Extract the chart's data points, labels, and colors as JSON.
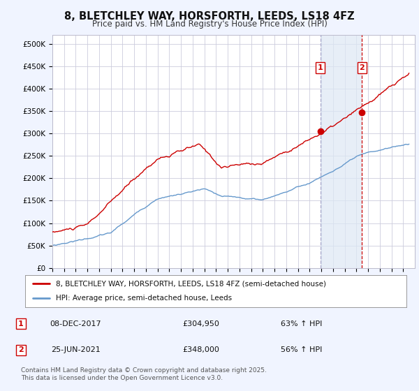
{
  "title": "8, BLETCHLEY WAY, HORSFORTH, LEEDS, LS18 4FZ",
  "subtitle": "Price paid vs. HM Land Registry's House Price Index (HPI)",
  "yticks": [
    0,
    50000,
    100000,
    150000,
    200000,
    250000,
    300000,
    350000,
    400000,
    450000,
    500000
  ],
  "ytick_labels": [
    "£0",
    "£50K",
    "£100K",
    "£150K",
    "£200K",
    "£250K",
    "£300K",
    "£350K",
    "£400K",
    "£450K",
    "£500K"
  ],
  "xlim_start": 1995,
  "xlim_end": 2026,
  "ylim": [
    0,
    520000
  ],
  "red_color": "#cc0000",
  "blue_color": "#6699cc",
  "shade_color": "#dde8f5",
  "vline1_x": 2017.92,
  "vline1_color": "#aaaacc",
  "vline2_x": 2021.48,
  "vline2_color": "#cc0000",
  "dot1_x": 2017.92,
  "dot1_y": 304950,
  "dot2_x": 2021.48,
  "dot2_y": 348000,
  "label1": "1",
  "label2": "2",
  "legend_line1": "8, BLETCHLEY WAY, HORSFORTH, LEEDS, LS18 4FZ (semi-detached house)",
  "legend_line2": "HPI: Average price, semi-detached house, Leeds",
  "table_row1": [
    "1",
    "08-DEC-2017",
    "£304,950",
    "63% ↑ HPI"
  ],
  "table_row2": [
    "2",
    "25-JUN-2021",
    "£348,000",
    "56% ↑ HPI"
  ],
  "footer": "Contains HM Land Registry data © Crown copyright and database right 2025.\nThis data is licensed under the Open Government Licence v3.0.",
  "fig_bg": "#f0f4ff",
  "plot_bg": "#ffffff",
  "grid_color": "#ccccdd"
}
